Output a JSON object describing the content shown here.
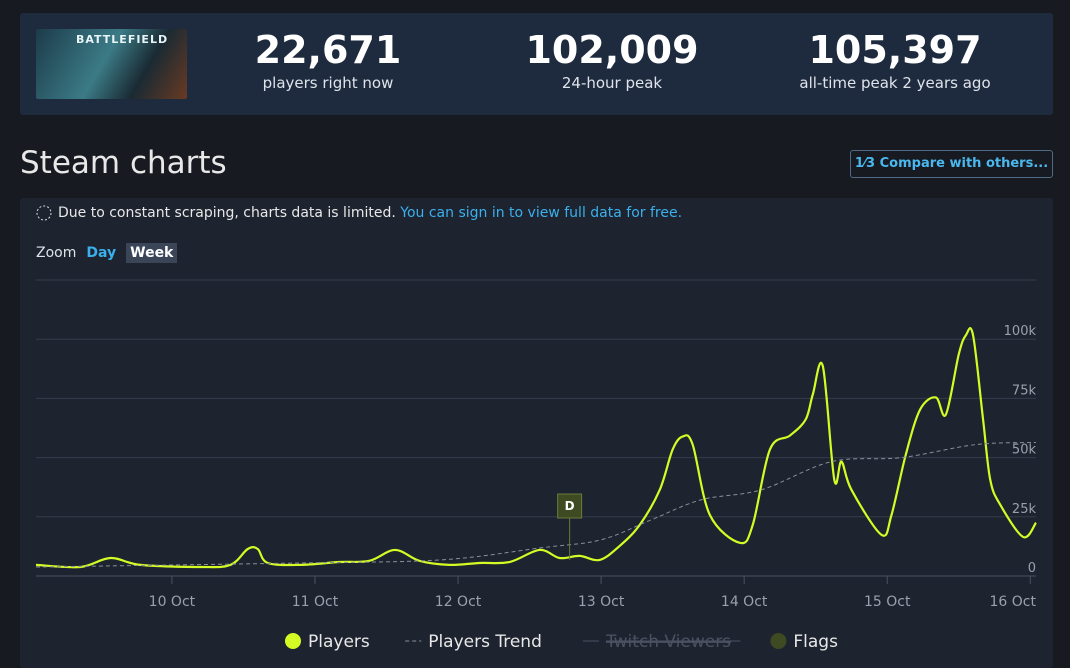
{
  "header": {
    "image_text": "BATTLEFIELD",
    "stats": [
      {
        "value": "22,671",
        "label": "players right now"
      },
      {
        "value": "102,009",
        "label": "24-hour peak"
      },
      {
        "value": "105,397",
        "label": "all-time peak 2 years ago"
      }
    ]
  },
  "section_title": "Steam charts",
  "compare_button": {
    "icon": "1⁄3",
    "label": "Compare with others..."
  },
  "notice": {
    "text": "Due to constant scraping, charts data is limited.",
    "link": "You can sign in to view full data for free."
  },
  "zoom": {
    "label": "Zoom",
    "options": [
      "Day",
      "Week"
    ],
    "active": "Week"
  },
  "chart_data": {
    "type": "line",
    "xlim": [
      9.05,
      16.04
    ],
    "xticks": [
      {
        "value": 10,
        "label": "10 Oct"
      },
      {
        "value": 11,
        "label": "11 Oct"
      },
      {
        "value": 12,
        "label": "12 Oct"
      },
      {
        "value": 13,
        "label": "13 Oct"
      },
      {
        "value": 14,
        "label": "14 Oct"
      },
      {
        "value": 15,
        "label": "15 Oct"
      },
      {
        "value": 16,
        "label": "16 Oct"
      }
    ],
    "ylim": [
      0,
      125000
    ],
    "yticks": [
      0,
      {
        "value": 25000,
        "label": "25k"
      },
      {
        "value": 50000,
        "label": "50k"
      },
      {
        "value": 75000,
        "label": "75k"
      },
      {
        "value": 100000,
        "label": "100k"
      },
      {
        "value": 125000,
        "label": ""
      }
    ],
    "grid": true,
    "series": [
      {
        "name": "Players",
        "color": "#d4fc24",
        "style": "solid",
        "x": [
          9.05,
          9.36,
          9.57,
          9.78,
          10.2,
          10.41,
          10.53,
          10.6,
          10.67,
          10.9,
          11.17,
          11.38,
          11.56,
          11.73,
          11.94,
          12.15,
          12.36,
          12.57,
          12.71,
          12.85,
          12.99,
          13.13,
          13.27,
          13.41,
          13.5,
          13.57,
          13.64,
          13.76,
          13.97,
          14.06,
          14.18,
          14.32,
          14.43,
          14.48,
          14.55,
          14.63,
          14.68,
          14.75,
          14.96,
          15.03,
          15.13,
          15.23,
          15.34,
          15.41,
          15.5,
          15.55,
          15.6,
          15.67,
          15.72,
          15.79,
          15.95,
          16.04
        ],
        "values": [
          4700,
          3800,
          7600,
          4700,
          3800,
          4700,
          11400,
          11400,
          5500,
          4700,
          5900,
          6400,
          11000,
          6400,
          4700,
          5500,
          5900,
          11000,
          7600,
          8500,
          6800,
          12700,
          21600,
          36400,
          53400,
          58900,
          55500,
          25800,
          14000,
          21600,
          53400,
          59300,
          66100,
          76700,
          88600,
          40700,
          48300,
          36400,
          17400,
          25800,
          51300,
          70300,
          75400,
          68200,
          93600,
          101700,
          101700,
          66100,
          40700,
          30100,
          16500,
          22500
        ]
      },
      {
        "name": "Players Trend",
        "color": "#8a8f98",
        "style": "dashed",
        "x": [
          9.05,
          10.9,
          11.88,
          12.58,
          13.0,
          13.35,
          13.7,
          14.12,
          14.61,
          15.1,
          15.62,
          16.04
        ],
        "values": [
          3800,
          5500,
          6800,
          11900,
          15300,
          23700,
          32200,
          36400,
          48300,
          50000,
          55500,
          56400
        ]
      },
      {
        "name": "Twitch Viewers",
        "color": "#4a5262",
        "style": "hidden",
        "x": [],
        "values": []
      }
    ],
    "flags": {
      "name": "Flags",
      "color": "#3e4a22",
      "x": [
        12.78
      ],
      "labels": [
        "D"
      ]
    }
  }
}
